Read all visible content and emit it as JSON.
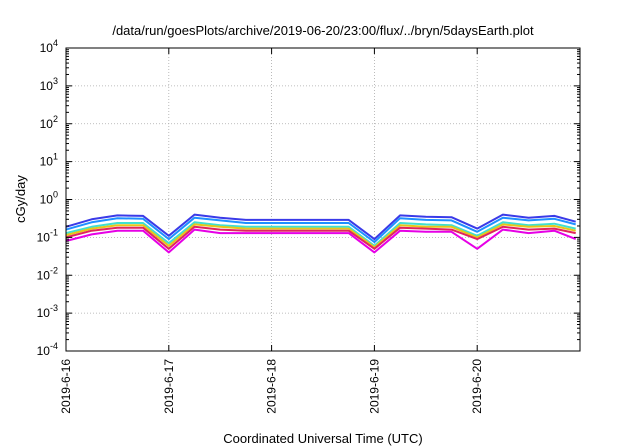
{
  "chart_data": {
    "type": "line",
    "title": "/data/run/goesPlots/archive/2019-06-20/23:00/flux/../bryn/5daysEarth.plot",
    "xlabel": "Coordinated Universal Time (UTC)",
    "ylabel": "cGy/day",
    "yscale": "log",
    "ylim": [
      0.0001,
      10000
    ],
    "ytick_labels": [
      {
        "base": "10",
        "exp": "-4",
        "value": 0.0001
      },
      {
        "base": "10",
        "exp": "-3",
        "value": 0.001
      },
      {
        "base": "10",
        "exp": "-2",
        "value": 0.01
      },
      {
        "base": "10",
        "exp": "-1",
        "value": 0.1
      },
      {
        "base": "10",
        "exp": "0",
        "value": 1
      },
      {
        "base": "10",
        "exp": "1",
        "value": 10
      },
      {
        "base": "10",
        "exp": "2",
        "value": 100
      },
      {
        "base": "10",
        "exp": "3",
        "value": 1000
      },
      {
        "base": "10",
        "exp": "4",
        "value": 10000
      }
    ],
    "xlim": [
      "2019-06-16",
      "2019-06-21"
    ],
    "xtick_labels": [
      "2019-6-16",
      "2019-6-17",
      "2019-6-18",
      "2019-6-19",
      "2019-6-20"
    ],
    "grid": true,
    "legend": "none",
    "x": [
      "2019-06-16 00:00",
      "2019-06-16 06:00",
      "2019-06-16 12:00",
      "2019-06-16 18:00",
      "2019-06-17 00:00",
      "2019-06-17 06:00",
      "2019-06-17 12:00",
      "2019-06-17 18:00",
      "2019-06-18 00:00",
      "2019-06-18 06:00",
      "2019-06-18 12:00",
      "2019-06-18 18:00",
      "2019-06-19 00:00",
      "2019-06-19 06:00",
      "2019-06-19 12:00",
      "2019-06-19 18:00",
      "2019-06-20 00:00",
      "2019-06-20 06:00",
      "2019-06-20 12:00",
      "2019-06-20 18:00",
      "2019-06-20 23:00"
    ],
    "series": [
      {
        "color": "#3a3ae8",
        "values": [
          0.19,
          0.3,
          0.38,
          0.37,
          0.11,
          0.4,
          0.33,
          0.29,
          0.29,
          0.29,
          0.29,
          0.29,
          0.09,
          0.38,
          0.35,
          0.34,
          0.17,
          0.4,
          0.33,
          0.37,
          0.26
        ]
      },
      {
        "color": "#1e90ff",
        "values": [
          0.16,
          0.25,
          0.32,
          0.31,
          0.09,
          0.33,
          0.28,
          0.24,
          0.24,
          0.24,
          0.24,
          0.24,
          0.075,
          0.32,
          0.29,
          0.28,
          0.14,
          0.33,
          0.28,
          0.31,
          0.22
        ]
      },
      {
        "color": "#40e0d0",
        "values": [
          0.13,
          0.19,
          0.24,
          0.24,
          0.07,
          0.25,
          0.21,
          0.19,
          0.19,
          0.19,
          0.19,
          0.19,
          0.06,
          0.24,
          0.22,
          0.21,
          0.11,
          0.25,
          0.21,
          0.23,
          0.17
        ]
      },
      {
        "color": "#e6c619",
        "values": [
          0.115,
          0.17,
          0.21,
          0.21,
          0.06,
          0.22,
          0.19,
          0.17,
          0.17,
          0.17,
          0.17,
          0.17,
          0.055,
          0.21,
          0.19,
          0.19,
          0.1,
          0.22,
          0.19,
          0.2,
          0.15
        ]
      },
      {
        "color": "#e0245e",
        "values": [
          0.1,
          0.15,
          0.18,
          0.18,
          0.05,
          0.19,
          0.16,
          0.15,
          0.15,
          0.15,
          0.15,
          0.15,
          0.05,
          0.18,
          0.17,
          0.16,
          0.09,
          0.19,
          0.16,
          0.17,
          0.13
        ]
      },
      {
        "color": "#e600e6",
        "values": [
          0.08,
          0.12,
          0.15,
          0.15,
          0.04,
          0.16,
          0.13,
          0.13,
          0.13,
          0.13,
          0.13,
          0.13,
          0.04,
          0.15,
          0.14,
          0.14,
          0.05,
          0.16,
          0.13,
          0.15,
          0.09
        ]
      }
    ]
  }
}
